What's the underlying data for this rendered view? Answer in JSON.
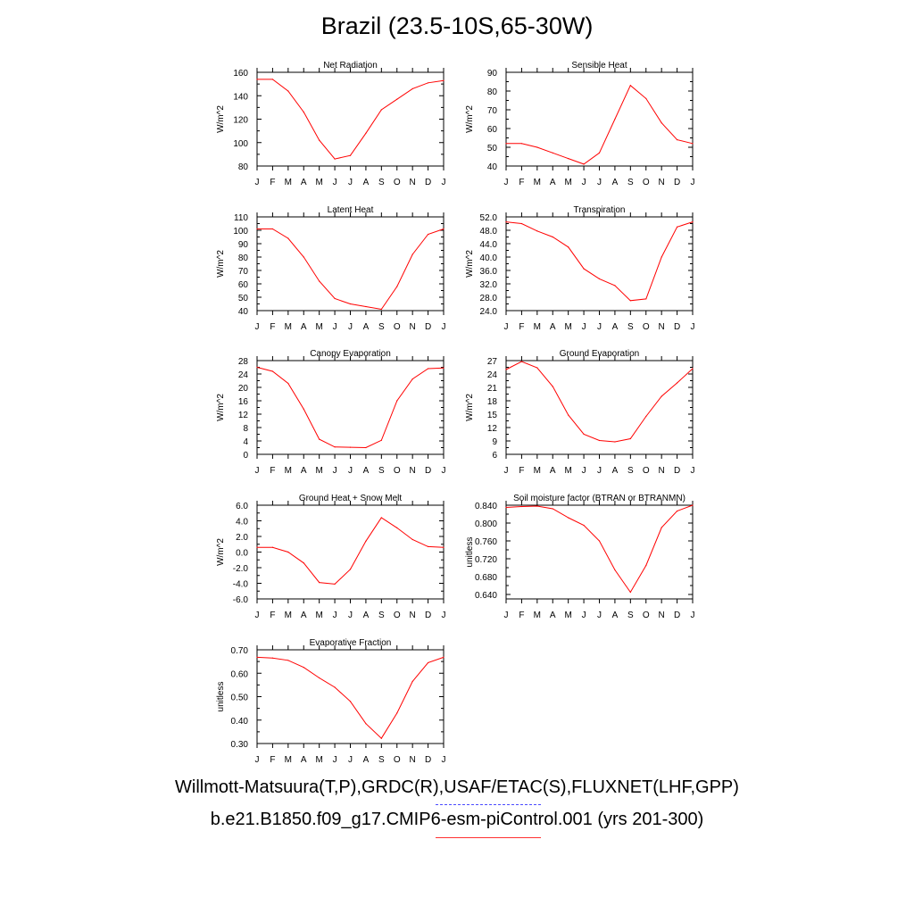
{
  "title": "Brazil (23.5-10S,65-30W)",
  "legend": {
    "observations_label": "Willmott-Matsuura(T,P),GRDC(R),USAF/ETAC(S),FLUXNET(LHF,GPP)",
    "observations_color": "#4a4aff",
    "model_label": "b.e21.B1850.f09_g17.CMIP6-esm-piControl.001 (yrs 201-300)",
    "model_color": "#ff0000"
  },
  "chart_data": [
    {
      "type": "line",
      "title": "Net Radiation",
      "ylabel": "W/m^2",
      "x": [
        "J",
        "F",
        "M",
        "A",
        "M",
        "J",
        "J",
        "A",
        "S",
        "O",
        "N",
        "D",
        "J"
      ],
      "ylim": [
        80,
        160
      ],
      "yticks": [
        "80",
        "100",
        "120",
        "140",
        "160"
      ],
      "series": [
        {
          "color": "#ff0000",
          "values": [
            154,
            154,
            144,
            126,
            102,
            86,
            89,
            108,
            128,
            137,
            146,
            151,
            153
          ]
        }
      ]
    },
    {
      "type": "line",
      "title": "Sensible Heat",
      "ylabel": "W/m^2",
      "x": [
        "J",
        "F",
        "M",
        "A",
        "M",
        "J",
        "J",
        "A",
        "S",
        "O",
        "N",
        "D",
        "J"
      ],
      "ylim": [
        40,
        90
      ],
      "yticks": [
        "40",
        "50",
        "60",
        "70",
        "80",
        "90"
      ],
      "series": [
        {
          "color": "#ff0000",
          "values": [
            52,
            52,
            50,
            47,
            44,
            41,
            47,
            65,
            83,
            76,
            63,
            54,
            52
          ]
        }
      ]
    },
    {
      "type": "line",
      "title": "Latent Heat",
      "ylabel": "W/m^2",
      "x": [
        "J",
        "F",
        "M",
        "A",
        "M",
        "J",
        "J",
        "A",
        "S",
        "O",
        "N",
        "D",
        "J"
      ],
      "ylim": [
        40,
        110
      ],
      "yticks": [
        "40",
        "50",
        "60",
        "70",
        "80",
        "90",
        "100",
        "110"
      ],
      "series": [
        {
          "color": "#ff0000",
          "values": [
            101,
            101,
            94,
            80,
            62,
            49,
            45,
            43,
            41,
            58,
            82,
            97,
            101
          ]
        }
      ]
    },
    {
      "type": "line",
      "title": "Transpiration",
      "ylabel": "W/m^2",
      "x": [
        "J",
        "F",
        "M",
        "A",
        "M",
        "J",
        "J",
        "A",
        "S",
        "O",
        "N",
        "D",
        "J"
      ],
      "ylim": [
        24,
        52
      ],
      "yticks": [
        "24.0",
        "28.0",
        "32.0",
        "36.0",
        "40.0",
        "44.0",
        "48.0",
        "52.0"
      ],
      "series": [
        {
          "color": "#ff0000",
          "values": [
            50.5,
            50.0,
            47.8,
            46.0,
            43.0,
            36.5,
            33.5,
            31.5,
            27.0,
            27.5,
            40.0,
            49.0,
            50.5
          ]
        }
      ]
    },
    {
      "type": "line",
      "title": "Canopy Evaporation",
      "ylabel": "W/m^2",
      "x": [
        "J",
        "F",
        "M",
        "A",
        "M",
        "J",
        "J",
        "A",
        "S",
        "O",
        "N",
        "D",
        "J"
      ],
      "ylim": [
        0,
        28
      ],
      "yticks": [
        "0",
        "4",
        "8",
        "12",
        "16",
        "20",
        "24",
        "28"
      ],
      "series": [
        {
          "color": "#ff0000",
          "values": [
            26.0,
            24.8,
            21.2,
            13.5,
            4.5,
            2.2,
            2.1,
            2.0,
            4.2,
            16.0,
            22.5,
            25.6,
            25.8
          ]
        }
      ]
    },
    {
      "type": "line",
      "title": "Ground Evaporation",
      "ylabel": "W/m^2",
      "x": [
        "J",
        "F",
        "M",
        "A",
        "M",
        "J",
        "J",
        "A",
        "S",
        "O",
        "N",
        "D",
        "J"
      ],
      "ylim": [
        6,
        27
      ],
      "yticks": [
        "6",
        "9",
        "12",
        "15",
        "18",
        "21",
        "24",
        "27"
      ],
      "series": [
        {
          "color": "#ff0000",
          "values": [
            25.0,
            26.8,
            25.4,
            21.2,
            14.8,
            10.5,
            9.1,
            8.8,
            9.5,
            14.5,
            19.0,
            22.0,
            25.2
          ]
        }
      ]
    },
    {
      "type": "line",
      "title": "Ground Heat + Snow Melt",
      "ylabel": "W/m^2",
      "x": [
        "J",
        "F",
        "M",
        "A",
        "M",
        "J",
        "J",
        "A",
        "S",
        "O",
        "N",
        "D",
        "J"
      ],
      "ylim": [
        -6,
        6
      ],
      "yticks": [
        "-6.0",
        "-4.0",
        "-2.0",
        "0.0",
        "2.0",
        "4.0",
        "6.0"
      ],
      "series": [
        {
          "color": "#ff0000",
          "values": [
            0.6,
            0.6,
            0.0,
            -1.4,
            -3.9,
            -4.1,
            -2.2,
            1.4,
            4.4,
            3.1,
            1.6,
            0.7,
            0.6
          ]
        }
      ]
    },
    {
      "type": "line",
      "title": "Soil moisture factor (BTRAN or BTRANMN)",
      "ylabel": "unitless",
      "x": [
        "J",
        "F",
        "M",
        "A",
        "M",
        "J",
        "J",
        "A",
        "S",
        "O",
        "N",
        "D",
        "J"
      ],
      "ylim": [
        0.63,
        0.84
      ],
      "yticks": [
        "0.640",
        "0.680",
        "0.720",
        "0.760",
        "0.800",
        "0.840"
      ],
      "series": [
        {
          "color": "#ff0000",
          "values": [
            0.835,
            0.837,
            0.838,
            0.832,
            0.812,
            0.795,
            0.76,
            0.695,
            0.645,
            0.705,
            0.79,
            0.827,
            0.84
          ]
        }
      ]
    },
    {
      "type": "line",
      "title": "Evaporative Fraction",
      "ylabel": "unitless",
      "x": [
        "J",
        "F",
        "M",
        "A",
        "M",
        "J",
        "J",
        "A",
        "S",
        "O",
        "N",
        "D",
        "J"
      ],
      "ylim": [
        0.3,
        0.7
      ],
      "yticks": [
        "0.30",
        "0.40",
        "0.50",
        "0.60",
        "0.70"
      ],
      "series": [
        {
          "color": "#ff0000",
          "values": [
            0.668,
            0.665,
            0.655,
            0.625,
            0.58,
            0.54,
            0.48,
            0.385,
            0.322,
            0.43,
            0.565,
            0.645,
            0.668
          ]
        }
      ]
    }
  ]
}
